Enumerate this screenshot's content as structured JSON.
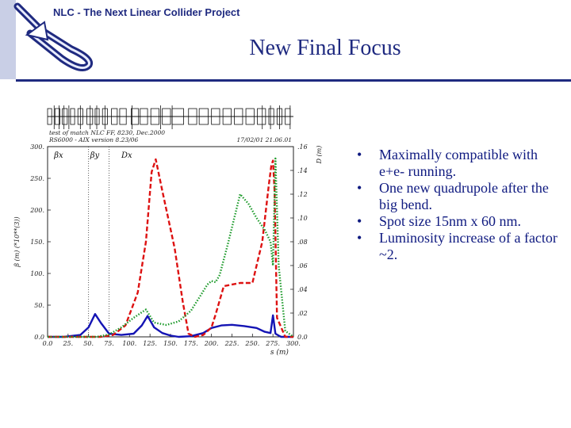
{
  "header": {
    "project_title": "NLC - The Next Linear Collider Project"
  },
  "slide": {
    "title": "New Final Focus"
  },
  "bullets": [
    "Maximally compatible with e+e- running.",
    "One new quadrupole after the big bend.",
    "Spot size 15nm x 60 nm.",
    "Luminosity increase of a factor ~2."
  ],
  "bullet_symbol": "•",
  "chart_data": {
    "type": "line",
    "header_left": [
      "test of match NLC FF, 8230, Dec.2000",
      "RS6000 - AIX version 8.23/06"
    ],
    "header_right": "17/02/01 21.06.01",
    "xlabel": "s (m)",
    "ylabel_left": "β (m) (*10**(3))",
    "ylabel_right": "D (m)",
    "xlim": [
      0,
      300
    ],
    "ylim_left": [
      0,
      300
    ],
    "ylim_right": [
      0,
      0.16
    ],
    "x_ticks": [
      "0.0",
      "25.",
      "50.",
      "75.",
      "100.",
      "125.",
      "150.",
      "175.",
      "200.",
      "225.",
      "250.",
      "275.",
      "300."
    ],
    "y_ticks_left": [
      "0.0",
      "50.",
      "100.",
      "150.",
      "200.",
      "250.",
      "300."
    ],
    "y_ticks_right": [
      "0.0",
      ".02",
      ".04",
      ".06",
      ".08",
      ".10",
      ".12",
      ".14",
      ".16"
    ],
    "legend": [
      "βx",
      "βy",
      "Dx"
    ],
    "series": [
      {
        "name": "βx",
        "axis": "left",
        "color": "#1414b4",
        "style": "solid",
        "x": [
          0,
          20,
          40,
          50,
          58,
          65,
          75,
          90,
          105,
          115,
          122,
          130,
          140,
          150,
          160,
          175,
          190,
          200,
          212,
          225,
          240,
          255,
          265,
          272,
          275,
          278,
          282,
          285,
          300
        ],
        "y": [
          0,
          0,
          3,
          15,
          36,
          22,
          5,
          3,
          5,
          18,
          33,
          15,
          6,
          2,
          0,
          1,
          6,
          14,
          18,
          19,
          17,
          14,
          8,
          6,
          34,
          5,
          2,
          0,
          0
        ]
      },
      {
        "name": "βy",
        "axis": "left",
        "color": "#dd1111",
        "style": "dashed",
        "x": [
          0,
          50,
          65,
          80,
          95,
          110,
          120,
          127,
          132,
          140,
          155,
          165,
          172,
          180,
          190,
          200,
          205,
          215,
          235,
          250,
          262,
          270,
          273,
          275,
          277,
          280,
          290,
          300
        ],
        "y": [
          0,
          0,
          0,
          3,
          18,
          70,
          150,
          260,
          280,
          230,
          140,
          55,
          5,
          0,
          3,
          15,
          35,
          80,
          85,
          85,
          150,
          240,
          270,
          278,
          230,
          30,
          0,
          0
        ]
      },
      {
        "name": "Dx",
        "axis": "right",
        "color": "#1c9a2a",
        "style": "dotted",
        "x": [
          0,
          60,
          75,
          90,
          105,
          120,
          130,
          145,
          160,
          175,
          185,
          195,
          200,
          205,
          210,
          220,
          235,
          245,
          255,
          265,
          272,
          275,
          278,
          282,
          290,
          300
        ],
        "y": [
          0,
          0,
          0.002,
          0.008,
          0.016,
          0.023,
          0.012,
          0.01,
          0.013,
          0.022,
          0.033,
          0.044,
          0.047,
          0.046,
          0.052,
          0.078,
          0.12,
          0.112,
          0.1,
          0.09,
          0.08,
          0.06,
          0.15,
          0.06,
          0.005,
          0
        ]
      }
    ],
    "vlines_x": [
      50,
      75
    ],
    "elements_diagram": {
      "boxes": [
        [
          0,
          5
        ],
        [
          9,
          15
        ],
        [
          18,
          24
        ],
        [
          28,
          33
        ],
        [
          37,
          43
        ],
        [
          48,
          55
        ],
        [
          58,
          63
        ],
        [
          67,
          73
        ],
        [
          78,
          85
        ],
        [
          88,
          96
        ],
        [
          102,
          111
        ],
        [
          113,
          122
        ],
        [
          126,
          136
        ],
        [
          140,
          150
        ],
        [
          152,
          166
        ],
        [
          172,
          182
        ],
        [
          185,
          196
        ],
        [
          200,
          210
        ],
        [
          214,
          224
        ],
        [
          228,
          238
        ],
        [
          242,
          252
        ],
        [
          256,
          266
        ],
        [
          270,
          276
        ],
        [
          280,
          286
        ],
        [
          290,
          296
        ]
      ],
      "stems": [
        8,
        14,
        20,
        26,
        40,
        52,
        60,
        70,
        103,
        138,
        152,
        262,
        272,
        283,
        296
      ]
    }
  }
}
